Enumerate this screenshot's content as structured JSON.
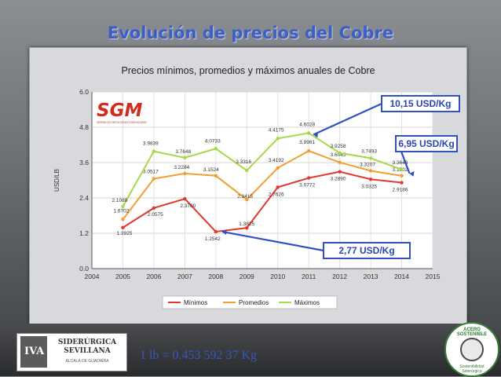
{
  "slide": {
    "title": "Evolución de precios del Cobre",
    "conversion": "1 lb = 0.453 592 37 Kg",
    "logo": {
      "line1": "SIDERÚRGICA",
      "line2": "SEVILLANA",
      "sub": "ALCALÁ DE GUADAÍRA",
      "mark_text": "IVA"
    },
    "seal": {
      "top": "ACERO SOSTENIBLE",
      "bottom": "Sostenibilidad Siderúrgica"
    }
  },
  "colors": {
    "minimos": "#e03a2e",
    "promedios": "#f0a030",
    "maximos": "#a8d84a",
    "callout_border": "#3350c0",
    "callout_text": "#2a45b5"
  },
  "chart_data": {
    "type": "line",
    "title": "Precios mínimos, promedios y máximos anuales de Cobre",
    "xlabel": "",
    "ylabel": "USD/LB",
    "xlim": [
      2004,
      2015
    ],
    "ylim": [
      0,
      6
    ],
    "x_ticks": [
      "2004",
      "2005",
      "2006",
      "2007",
      "2008",
      "2009",
      "2010",
      "2011",
      "2012",
      "2013",
      "2014",
      "2015"
    ],
    "y_ticks": [
      "0.0",
      "1.2",
      "2.4",
      "3.6",
      "4.8",
      "6.0"
    ],
    "grid": true,
    "legend_position": "bottom",
    "brand": {
      "logo_text": "SGM",
      "logo_caption": "SERVICIO GEOLÓGICO MEXICANO"
    },
    "series": [
      {
        "name": "Mínimos",
        "color": "#e03a2e",
        "x": [
          2005,
          2006,
          2007,
          2008,
          2009,
          2010,
          2011,
          2012,
          2013,
          2014
        ],
        "values": [
          1.3925,
          2.0575,
          2.37,
          1.2542,
          1.3825,
          2.7626,
          3.0772,
          3.289,
          3.0325,
          2.9186
        ],
        "labels": [
          "1.3925",
          "2.0575",
          "2.3700",
          "1.2542",
          "1.3825",
          "2.7626",
          "3.0772",
          "3.2890",
          "3.0325",
          "2.9186"
        ]
      },
      {
        "name": "Promedios",
        "color": "#f0a030",
        "x": [
          2005,
          2006,
          2007,
          2008,
          2009,
          2010,
          2011,
          2012,
          2013,
          2014
        ],
        "values": [
          1.6702,
          3.0517,
          3.2284,
          3.1524,
          2.3415,
          3.4192,
          3.9961,
          3.6045,
          3.3207,
          3.1502
        ],
        "labels": [
          "1.6702",
          "3.0517",
          "3.2284",
          "3.1524",
          "2.3415",
          "3.4192",
          "3.9961",
          "3.6045",
          "3.3207",
          "3.1502"
        ]
      },
      {
        "name": "Máximos",
        "color": "#a8d84a",
        "x": [
          2005,
          2006,
          2007,
          2008,
          2009,
          2010,
          2011,
          2012,
          2013,
          2014
        ],
        "values": [
          2.1088,
          3.9839,
          3.7648,
          4.0733,
          3.3316,
          4.4175,
          4.6028,
          3.9258,
          3.7493,
          3.3643
        ],
        "labels": [
          "2.1088",
          "3.9839",
          "3.7648",
          "4.0733",
          "3.3316",
          "4.4175",
          "4.6028",
          "3.9258",
          "3.7493",
          "3.3643"
        ]
      }
    ],
    "callouts": [
      {
        "text": "10,15 USD/Kg",
        "x": 2011,
        "y": 4.6028
      },
      {
        "text": "6,95 USD/Kg",
        "x": 2014,
        "y": 3.1502
      },
      {
        "text": "2,77 USD/Kg",
        "x": 2008,
        "y": 1.2542
      }
    ]
  }
}
